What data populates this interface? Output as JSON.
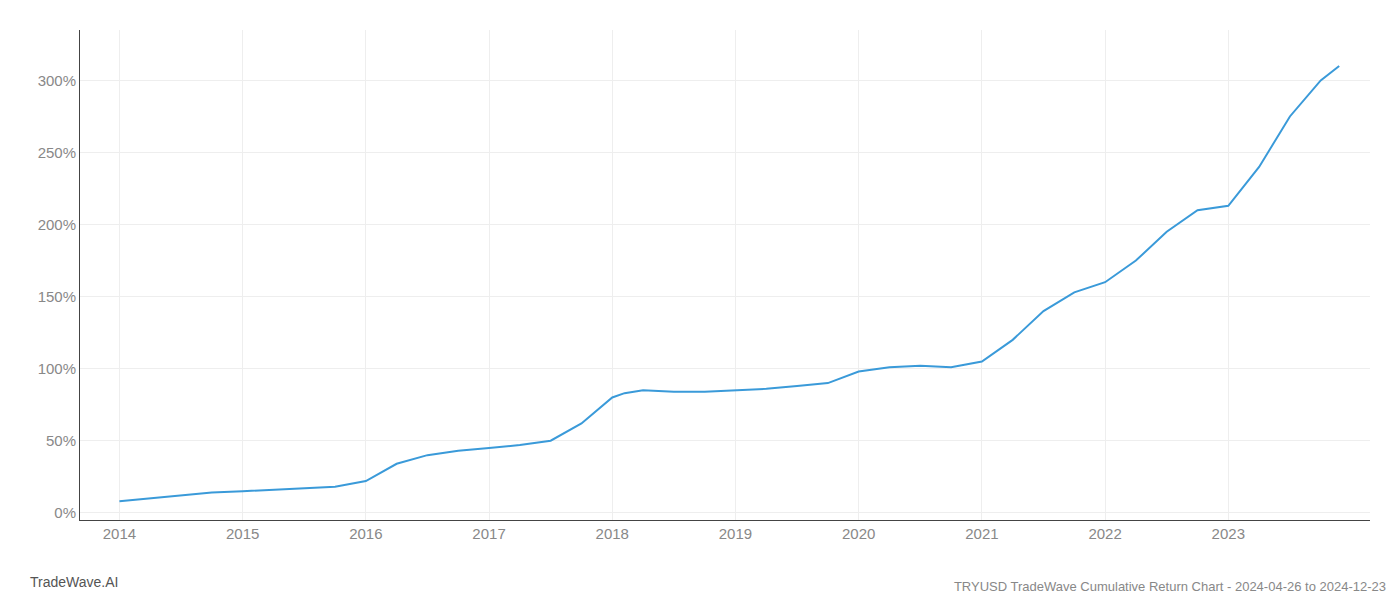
{
  "chart_data": {
    "type": "line",
    "title": "TRYUSD TradeWave Cumulative Return Chart - 2024-04-26 to 2024-12-23",
    "annotations": [
      "TradeWave.AI"
    ],
    "color": "#3a9ad9",
    "grid": true,
    "x": [
      2014.0,
      2014.25,
      2014.5,
      2014.75,
      2015.0,
      2015.25,
      2015.5,
      2015.75,
      2016.0,
      2016.25,
      2016.5,
      2016.75,
      2017.0,
      2017.25,
      2017.5,
      2017.75,
      2018.0,
      2018.1,
      2018.25,
      2018.5,
      2018.75,
      2019.0,
      2019.25,
      2019.5,
      2019.75,
      2020.0,
      2020.25,
      2020.5,
      2020.75,
      2021.0,
      2021.25,
      2021.5,
      2021.75,
      2022.0,
      2022.25,
      2022.5,
      2022.75,
      2023.0,
      2023.25,
      2023.5,
      2023.75,
      2023.9
    ],
    "values": [
      8,
      10,
      12,
      14,
      15,
      16,
      17,
      18,
      22,
      34,
      40,
      43,
      45,
      47,
      50,
      62,
      80,
      83,
      85,
      84,
      84,
      85,
      86,
      88,
      90,
      98,
      101,
      102,
      101,
      105,
      120,
      140,
      153,
      160,
      175,
      195,
      210,
      213,
      240,
      275,
      300,
      310
    ],
    "xlim": [
      2013.68,
      2024.15
    ],
    "xticks": [
      2014,
      2015,
      2016,
      2017,
      2018,
      2019,
      2020,
      2021,
      2022,
      2023
    ],
    "ylim": [
      -5,
      335
    ],
    "yticks": [
      {
        "value": 0,
        "label": "0%"
      },
      {
        "value": 50,
        "label": "50%"
      },
      {
        "value": 100,
        "label": "100%"
      },
      {
        "value": 150,
        "label": "150%"
      },
      {
        "value": 200,
        "label": "200%"
      },
      {
        "value": 250,
        "label": "250%"
      },
      {
        "value": 300,
        "label": "300%"
      }
    ]
  }
}
